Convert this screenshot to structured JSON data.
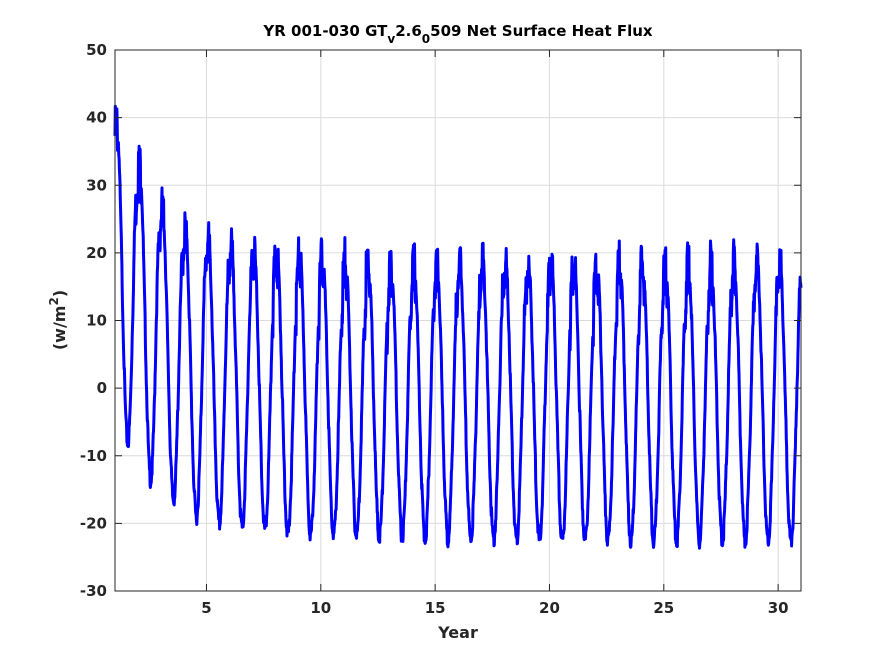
{
  "chart_data": {
    "type": "line",
    "title": {
      "prefix": "YR 001-030 GT",
      "sub1": "v",
      "mid": "2.6",
      "sub2": "0",
      "suffix": "509 Net Surface Heat Flux"
    },
    "xlabel": "Year",
    "ylabel": {
      "prefix": "(w/m",
      "sup": "2",
      "suffix": ")"
    },
    "xlim": [
      1,
      31
    ],
    "ylim": [
      -30,
      50
    ],
    "xticks": [
      5,
      10,
      15,
      20,
      25,
      30
    ],
    "yticks": [
      -30,
      -20,
      -10,
      0,
      10,
      20,
      30,
      40,
      50
    ],
    "grid": true,
    "line_color": "#0000ff",
    "series": [
      {
        "cycle_start_year": 1,
        "cycles": 30,
        "annual_max": [
          41,
          35,
          28,
          25,
          23.5,
          22.5,
          22,
          21.5,
          21,
          20.8,
          20.6,
          20.4,
          20.2,
          20.1,
          20,
          20,
          20,
          20,
          20,
          20,
          20,
          20,
          20,
          20,
          20,
          20,
          20,
          20,
          20,
          20
        ],
        "annual_min": [
          -7.5,
          -13,
          -16,
          -18.5,
          -19.5,
          -20,
          -20.5,
          -21,
          -21,
          -21.2,
          -21.3,
          -21.4,
          -21.5,
          -21.6,
          -21.7,
          -21.8,
          -21.8,
          -21.9,
          -21.9,
          -22,
          -22,
          -22,
          -22,
          -22,
          -22,
          -22,
          -22,
          -22,
          -22,
          -22
        ]
      }
    ]
  }
}
